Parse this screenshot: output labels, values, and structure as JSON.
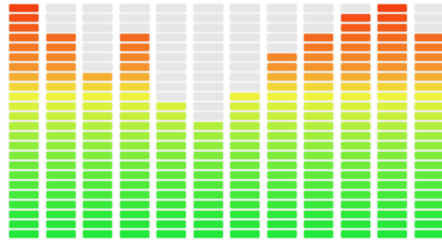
{
  "meter": {
    "segments_per_column": 24,
    "levels": [
      24,
      21,
      17,
      21,
      14,
      12,
      15,
      19,
      21,
      23,
      24,
      21
    ],
    "colors": {
      "inactive": "#e6e6e6",
      "low": "#22e83a",
      "mid": "#f2f23a",
      "high": "#f59a2e",
      "peak": "#f4400f"
    }
  }
}
